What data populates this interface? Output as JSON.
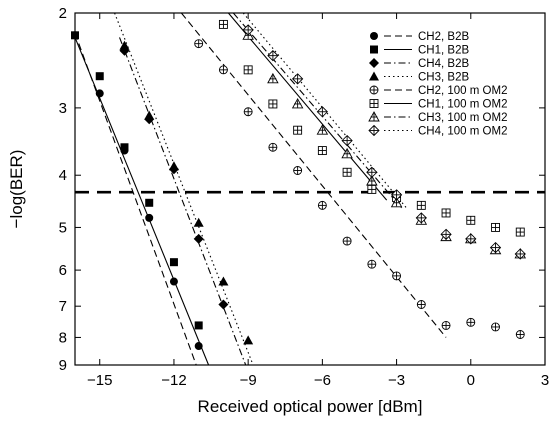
{
  "chart_data": {
    "type": "scatter",
    "xlabel": "Received optical power [dBm]",
    "ylabel": "−log(BER)",
    "x_ticks": [
      "−15",
      "−12",
      "−9",
      "−6",
      "−3",
      "0",
      "3"
    ],
    "x_tick_values": [
      -15,
      -12,
      -9,
      -6,
      -3,
      0,
      3
    ],
    "y_ticks": [
      "2",
      "3",
      "4",
      "5",
      "6",
      "7",
      "8",
      "9"
    ],
    "y_tick_values": [
      2,
      3,
      4,
      5,
      6,
      7,
      8,
      9
    ],
    "xlim": [
      -16,
      3
    ],
    "ylim": [
      2,
      9
    ],
    "y_scale": "log-log (BER), increasing downward",
    "grid": false,
    "legend_position": "top-right",
    "threshold_line": {
      "y": 4.3,
      "style": "thick dashed"
    },
    "series": [
      {
        "name": "CH2, B2B",
        "marker": "filled-circle",
        "line": "dashed",
        "points": [
          [
            -16,
            2.2
          ],
          [
            -15,
            2.82
          ],
          [
            -14,
            3.6
          ],
          [
            -13,
            4.8
          ],
          [
            -12,
            6.3
          ],
          [
            -11,
            8.3
          ]
        ],
        "fit": [
          [
            -16,
            2.18
          ],
          [
            -11.1,
            9
          ]
        ]
      },
      {
        "name": "CH1, B2B",
        "marker": "filled-square",
        "line": "solid",
        "points": [
          [
            -16,
            2.2
          ],
          [
            -15,
            2.62
          ],
          [
            -14,
            3.55
          ],
          [
            -13,
            4.5
          ],
          [
            -12,
            5.8
          ],
          [
            -11,
            7.6
          ]
        ],
        "fit": [
          [
            -16,
            2.22
          ],
          [
            -10.6,
            9
          ]
        ]
      },
      {
        "name": "CH4, B2B",
        "marker": "filled-diamond",
        "line": "dash-dot",
        "points": [
          [
            -14,
            2.35
          ],
          [
            -13,
            3.15
          ],
          [
            -12,
            3.9
          ],
          [
            -11,
            5.25
          ],
          [
            -10,
            6.95
          ]
        ],
        "fit": [
          [
            -14.2,
            2.22
          ],
          [
            -9.1,
            9
          ]
        ]
      },
      {
        "name": "CH3, B2B",
        "marker": "filled-triangle",
        "line": "dotted",
        "points": [
          [
            -14,
            2.3
          ],
          [
            -13,
            3.1
          ],
          [
            -12,
            3.85
          ],
          [
            -11,
            4.9
          ],
          [
            -10,
            6.3
          ],
          [
            -9,
            8.1
          ]
        ],
        "fit": [
          [
            -14.4,
            2.0
          ],
          [
            -8.8,
            9
          ]
        ]
      },
      {
        "name": "CH2, 100 m OM2",
        "marker": "circle-plus",
        "line": "dashed",
        "points": [
          [
            -11,
            2.28
          ],
          [
            -10,
            2.55
          ],
          [
            -9,
            3.05
          ],
          [
            -8,
            3.55
          ],
          [
            -7,
            3.92
          ],
          [
            -6,
            4.55
          ],
          [
            -5,
            5.3
          ],
          [
            -4,
            5.85
          ],
          [
            -3,
            6.15
          ],
          [
            -2,
            6.95
          ],
          [
            -1,
            7.6
          ],
          [
            0,
            7.5
          ],
          [
            1,
            7.65
          ],
          [
            2,
            7.9
          ]
        ],
        "fit": [
          [
            -11.7,
            2.0
          ],
          [
            -1,
            8.0
          ]
        ]
      },
      {
        "name": "CH1, 100 m OM2",
        "marker": "square-plus",
        "line": "solid",
        "points": [
          [
            -10,
            2.1
          ],
          [
            -9,
            2.55
          ],
          [
            -8,
            2.95
          ],
          [
            -7,
            3.3
          ],
          [
            -6,
            3.6
          ],
          [
            -5,
            3.95
          ],
          [
            -4,
            4.25
          ],
          [
            -3,
            4.4
          ],
          [
            -2,
            4.55
          ],
          [
            -1,
            4.7
          ],
          [
            0,
            4.85
          ],
          [
            1,
            5.0
          ],
          [
            2,
            5.1
          ]
        ],
        "fit": [
          [
            -9.8,
            2.0
          ],
          [
            -3.4,
            4.45
          ]
        ]
      },
      {
        "name": "CH3, 100 m OM2",
        "marker": "triangle-plus",
        "line": "dash-dot",
        "points": [
          [
            -9,
            2.2
          ],
          [
            -8,
            2.65
          ],
          [
            -7,
            2.95
          ],
          [
            -6,
            3.3
          ],
          [
            -5,
            3.65
          ],
          [
            -4,
            4.1
          ],
          [
            -3,
            4.5
          ],
          [
            -2,
            4.85
          ],
          [
            -1,
            5.2
          ],
          [
            0,
            5.25
          ],
          [
            1,
            5.5
          ],
          [
            2,
            5.6
          ]
        ],
        "fit": [
          [
            -9.6,
            2.0
          ],
          [
            -2.8,
            4.6
          ]
        ]
      },
      {
        "name": "CH4, 100 m OM2",
        "marker": "diamond-plus",
        "line": "dotted",
        "points": [
          [
            -9,
            2.15
          ],
          [
            -8,
            2.4
          ],
          [
            -7,
            2.65
          ],
          [
            -6,
            3.05
          ],
          [
            -5,
            3.45
          ],
          [
            -4,
            3.95
          ],
          [
            -3,
            4.35
          ],
          [
            -2,
            4.8
          ],
          [
            -1,
            5.15
          ],
          [
            0,
            5.25
          ],
          [
            1,
            5.45
          ],
          [
            2,
            5.6
          ]
        ],
        "fit": [
          [
            -9.2,
            2.0
          ],
          [
            -2.6,
            4.6
          ]
        ]
      }
    ]
  }
}
